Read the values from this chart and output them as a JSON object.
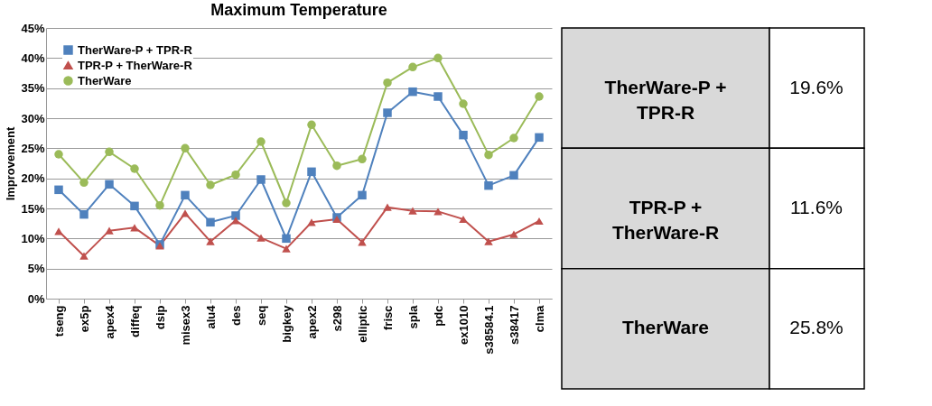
{
  "chart_data": [
    {
      "type": "line",
      "title": "Maximum Temperature",
      "ylabel": "Improvement",
      "categories": [
        "tseng",
        "ex5p",
        "apex4",
        "diffeq",
        "dsip",
        "misex3",
        "alu4",
        "des",
        "seq",
        "bigkey",
        "apex2",
        "s298",
        "elliptic",
        "frisc",
        "spla",
        "pdc",
        "ex1010",
        "s38584.1",
        "s38417",
        "clma"
      ],
      "series": [
        {
          "name": "TherWare-P + TPR-R",
          "color": "#4f81bd",
          "marker": "square",
          "values": [
            18.1,
            14,
            19,
            15.4,
            9,
            17.2,
            12.7,
            13.8,
            19.8,
            10,
            21.1,
            13.5,
            17.2,
            30.9,
            34.4,
            33.6,
            27.2,
            18.8,
            20.5,
            26.8
          ]
        },
        {
          "name": "TPR-P + TherWare-R",
          "color": "#c0504d",
          "marker": "triangle",
          "values": [
            11.2,
            7.1,
            11.3,
            11.8,
            8.8,
            14.2,
            9.5,
            13,
            10.1,
            8.3,
            12.7,
            13.2,
            9.4,
            15.2,
            14.6,
            14.5,
            13.2,
            9.5,
            10.7,
            12.9
          ]
        },
        {
          "name": "TherWare",
          "color": "#9bbb59",
          "marker": "circle",
          "values": [
            24,
            19.3,
            24.4,
            21.6,
            15.5,
            25,
            18.9,
            20.6,
            26.1,
            15.9,
            28.9,
            22.1,
            23.2,
            35.9,
            38.5,
            40,
            32.4,
            23.9,
            26.7,
            33.6
          ]
        }
      ],
      "ylim": [
        0,
        45
      ],
      "yticks": [
        {
          "value": 0,
          "label": "0%"
        },
        {
          "value": 5,
          "label": "5%"
        },
        {
          "value": 10,
          "label": "10%"
        },
        {
          "value": 15,
          "label": "15%"
        },
        {
          "value": 20,
          "label": "20%"
        },
        {
          "value": 25,
          "label": "25%"
        },
        {
          "value": 30,
          "label": "30%"
        },
        {
          "value": 35,
          "label": "35%"
        },
        {
          "value": 40,
          "label": "40%"
        },
        {
          "value": 45,
          "label": "45%"
        }
      ],
      "grid": "y",
      "legend": "top left",
      "line_style": "solid"
    },
    {
      "type": "other",
      "categories": [
        "TherWare-P + TPR-R",
        "TPR-P + TherWare-R",
        "TherWare"
      ],
      "value_labels": [
        "19.6%",
        "11.6%",
        "25.8%"
      ]
    }
  ]
}
